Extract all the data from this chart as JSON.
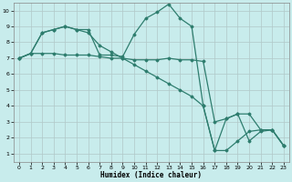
{
  "xlabel": "Humidex (Indice chaleur)",
  "background_color": "#c8ecec",
  "grid_color": "#b0c8c8",
  "line_color": "#2e7d6e",
  "xlim": [
    -0.5,
    23.5
  ],
  "ylim": [
    0.5,
    10.5
  ],
  "xticks": [
    0,
    1,
    2,
    3,
    4,
    5,
    6,
    7,
    8,
    9,
    10,
    11,
    12,
    13,
    14,
    15,
    16,
    17,
    18,
    19,
    20,
    21,
    22,
    23
  ],
  "yticks": [
    1,
    2,
    3,
    4,
    5,
    6,
    7,
    8,
    9,
    10
  ],
  "line1_x": [
    0,
    1,
    2,
    3,
    4,
    5,
    6,
    7,
    8,
    9,
    10,
    11,
    12,
    13,
    14,
    15,
    16,
    17,
    18,
    19,
    20,
    21,
    22,
    23
  ],
  "line1_y": [
    7.0,
    7.3,
    7.3,
    7.3,
    7.2,
    7.2,
    7.2,
    7.1,
    7.0,
    7.0,
    6.9,
    6.9,
    6.9,
    7.0,
    6.9,
    6.9,
    6.8,
    3.0,
    3.2,
    3.5,
    3.5,
    2.5,
    2.5,
    1.5
  ],
  "line2_x": [
    0,
    1,
    2,
    3,
    4,
    5,
    6,
    7,
    8,
    9,
    10,
    11,
    12,
    13,
    14,
    15,
    16,
    17,
    18,
    19,
    20,
    21,
    22,
    23
  ],
  "line2_y": [
    7.0,
    7.3,
    8.6,
    8.8,
    9.0,
    8.8,
    8.8,
    7.2,
    7.2,
    7.1,
    8.5,
    9.5,
    9.9,
    10.4,
    9.5,
    9.0,
    4.0,
    1.2,
    1.2,
    1.8,
    2.4,
    2.5,
    2.5,
    1.5
  ],
  "line3_x": [
    0,
    1,
    2,
    3,
    4,
    5,
    6,
    7,
    8,
    9,
    10,
    11,
    12,
    13,
    14,
    15,
    16,
    17,
    18,
    19,
    20,
    21,
    22,
    23
  ],
  "line3_y": [
    7.0,
    7.3,
    8.6,
    8.8,
    9.0,
    8.8,
    8.6,
    7.8,
    7.4,
    7.0,
    6.6,
    6.2,
    5.8,
    5.4,
    5.0,
    4.6,
    4.0,
    1.2,
    3.2,
    3.5,
    1.8,
    2.4,
    2.5,
    1.5
  ]
}
